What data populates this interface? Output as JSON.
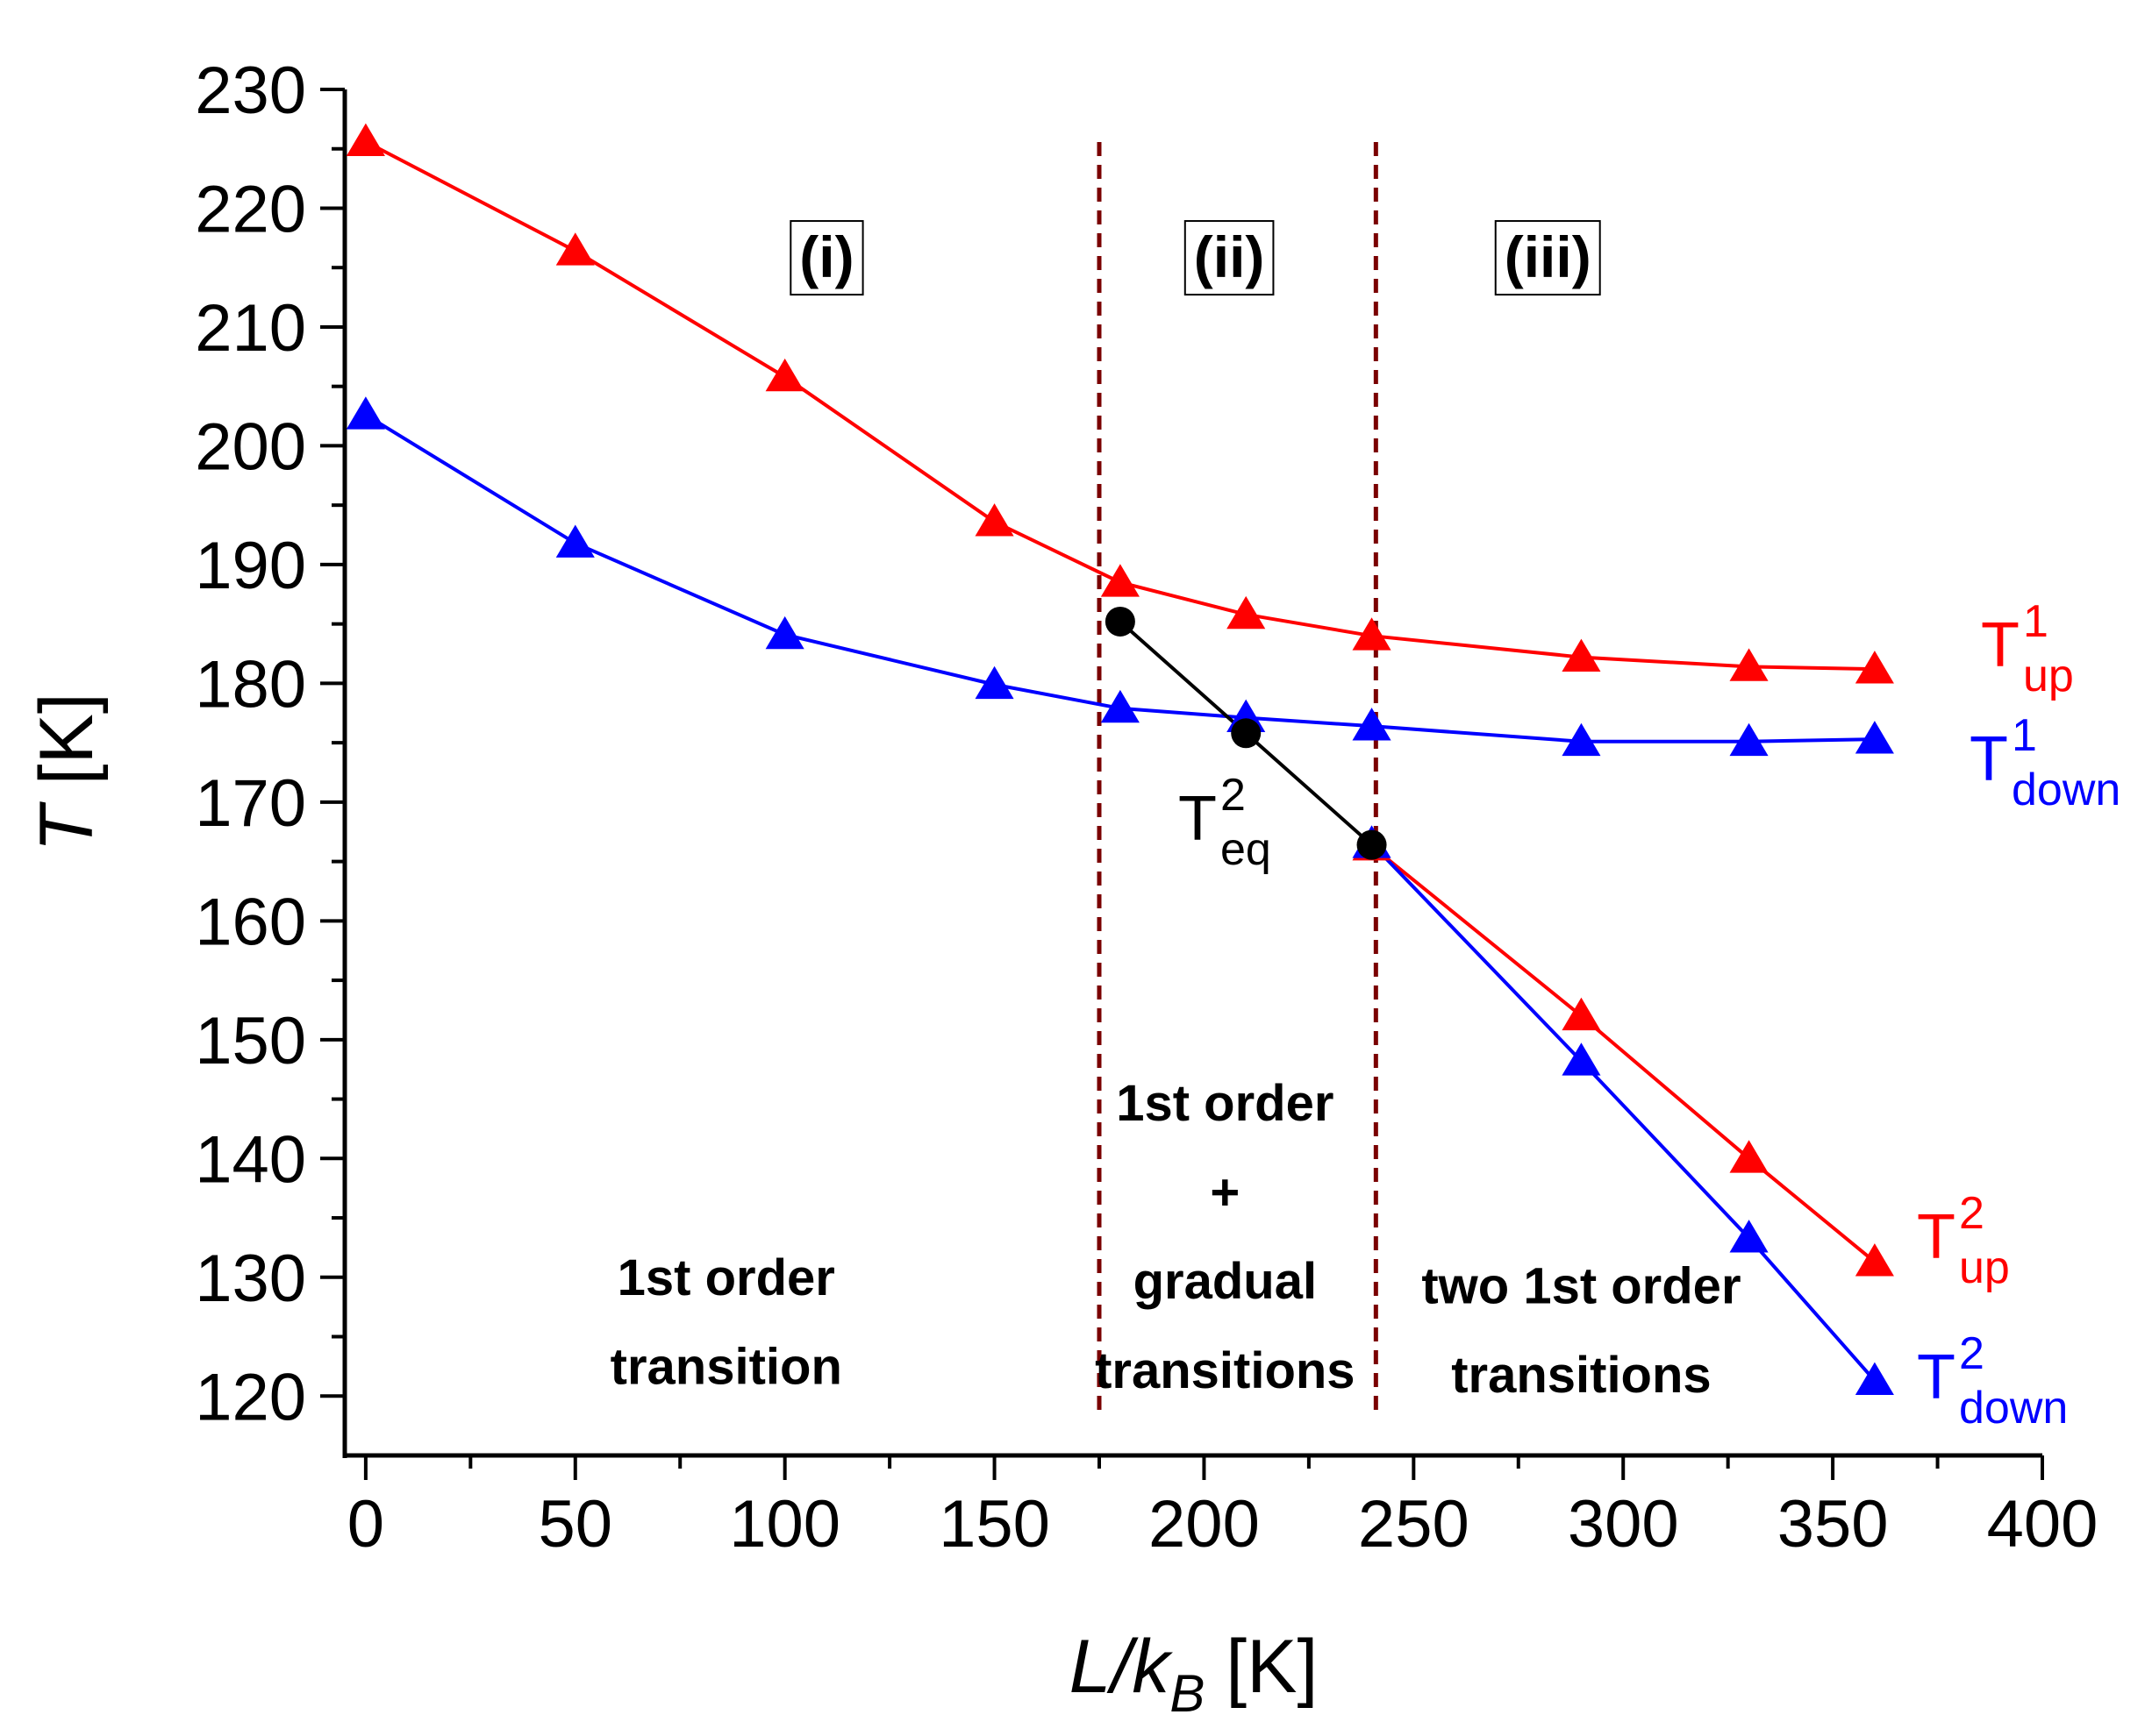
{
  "chart_data": {
    "type": "line",
    "title": "",
    "xlabel": "L/kB [K]",
    "xlabel_main": "L/k",
    "xlabel_sub": "B",
    "xlabel_unit": " [K]",
    "ylabel": "T [K]",
    "ylabel_main": "T",
    "ylabel_unit": " [K]",
    "xlim": [
      -5,
      400
    ],
    "ylim": [
      115,
      230
    ],
    "x_ticks": [
      0,
      50,
      100,
      150,
      200,
      250,
      300,
      350,
      400
    ],
    "y_ticks": [
      120,
      130,
      140,
      150,
      160,
      170,
      180,
      190,
      200,
      210,
      220,
      230
    ],
    "grid": false,
    "series": [
      {
        "name": "T up 1",
        "label_main": "T",
        "label_sup": "1",
        "label_sub": "up",
        "color": "#ff0000",
        "marker": "triangle",
        "x": [
          0,
          50,
          100,
          150,
          180,
          210,
          240,
          290,
          330,
          360
        ],
        "y": [
          225.6,
          216.4,
          205.8,
          193.6,
          188.5,
          185.8,
          184.0,
          182.2,
          181.4,
          181.2
        ]
      },
      {
        "name": "T down 1",
        "label_main": "T",
        "label_sup": "1",
        "label_sub": "down",
        "color": "#0000ff",
        "marker": "triangle",
        "x": [
          0,
          50,
          100,
          150,
          180,
          210,
          240,
          290,
          330,
          360
        ],
        "y": [
          202.6,
          191.8,
          184.1,
          179.9,
          177.9,
          177.1,
          176.4,
          175.1,
          175.1,
          175.3
        ]
      },
      {
        "name": "T up 2",
        "label_main": "T",
        "label_sup": "2",
        "label_sub": "up",
        "color": "#ff0000",
        "marker": "triangle",
        "x": [
          240,
          290,
          330,
          360
        ],
        "y": [
          166.3,
          152.0,
          140.0,
          131.3
        ]
      },
      {
        "name": "T down 2",
        "label_main": "T",
        "label_sup": "2",
        "label_sub": "down",
        "color": "#0000ff",
        "marker": "triangle",
        "x": [
          240,
          290,
          330,
          360
        ],
        "y": [
          166.5,
          148.2,
          133.3,
          121.3
        ]
      },
      {
        "name": "T eq 2",
        "label_main": "T",
        "label_sup": "2",
        "label_sub": "eq",
        "color": "#000000",
        "marker": "circle",
        "x": [
          180,
          210,
          240
        ],
        "y": [
          185.2,
          175.8,
          166.4
        ]
      }
    ],
    "vertical_lines": [
      {
        "x": 175,
        "color": "#7a0000",
        "style": "dashed"
      },
      {
        "x": 241,
        "color": "#7a0000",
        "style": "dashed"
      }
    ],
    "regions": [
      {
        "label": "(i)",
        "x": 110,
        "y": 214.2
      },
      {
        "label": "(ii)",
        "x": 206,
        "y": 214.2
      },
      {
        "label": "(iii)",
        "x": 282,
        "y": 214.2
      }
    ],
    "annotations": [
      {
        "lines": [
          "1st order",
          "transition"
        ],
        "x": 86,
        "y": 128.5,
        "line_step": 7.5
      },
      {
        "lines": [
          "1st order",
          "+",
          "gradual",
          "transitions"
        ],
        "x": 205,
        "y": 143.2,
        "line_step": 7.5
      },
      {
        "lines": [
          "two 1st order",
          "transitions"
        ],
        "x": 290,
        "y": 127.8,
        "line_step": 7.5
      }
    ]
  }
}
